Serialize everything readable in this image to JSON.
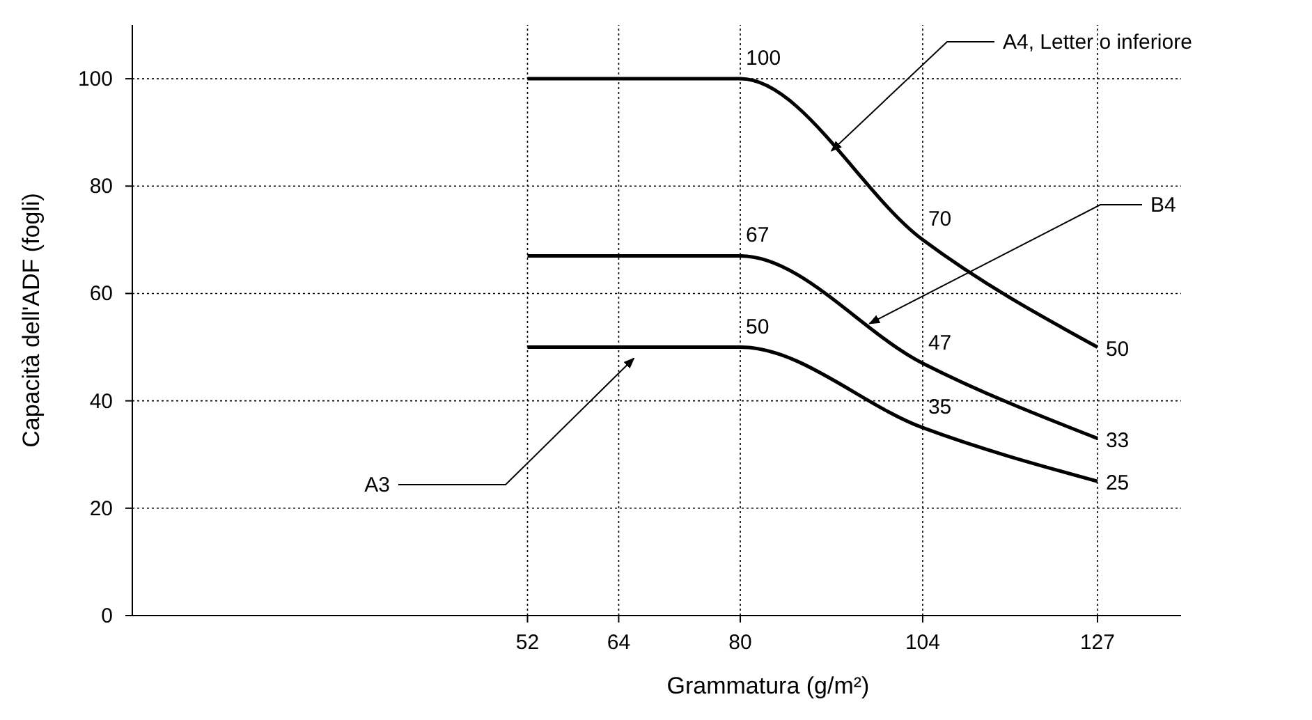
{
  "chart_data": {
    "type": "line",
    "xlabel": "Grammatura (g/m²)",
    "ylabel": "Capacità dell'ADF (fogli)",
    "x": [
      52,
      80,
      104,
      127
    ],
    "series": [
      {
        "name": "A4, Letter o inferiore",
        "color": "#000000",
        "values": [
          100,
          100,
          70,
          50
        ],
        "value_labels": [
          null,
          "100",
          "70",
          "50"
        ]
      },
      {
        "name": "B4",
        "color": "#000000",
        "values": [
          67,
          67,
          47,
          33
        ],
        "value_labels": [
          null,
          "67",
          "47",
          "33"
        ]
      },
      {
        "name": "A3",
        "color": "#000000",
        "values": [
          50,
          50,
          35,
          25
        ],
        "value_labels": [
          null,
          "50",
          "35",
          "25"
        ]
      }
    ],
    "xlim": [
      0,
      138
    ],
    "xticks": [
      52,
      64,
      80,
      104,
      127
    ],
    "ylim": [
      0,
      110
    ],
    "yticks": [
      0,
      20,
      40,
      60,
      80,
      100
    ],
    "grid": true,
    "marker": "none",
    "line_style": "solid"
  }
}
